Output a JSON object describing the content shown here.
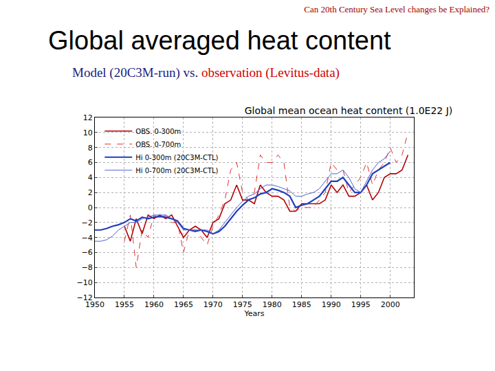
{
  "slide": {
    "header": "Can 20th Century Sea Level changes be Explained?",
    "title": "Global averaged heat content",
    "subtitle": [
      "Model (20C3M-run) vs. ",
      "observation (Levitus-data)"
    ]
  },
  "chart_data": {
    "type": "line",
    "title": "Global mean ocean heat content (1.0E22 J)",
    "x_label": "Years",
    "x": [
      1950,
      1951,
      1952,
      1953,
      1954,
      1955,
      1956,
      1957,
      1958,
      1959,
      1960,
      1961,
      1962,
      1963,
      1964,
      1965,
      1966,
      1967,
      1968,
      1969,
      1970,
      1971,
      1972,
      1973,
      1974,
      1975,
      1976,
      1977,
      1978,
      1979,
      1980,
      1981,
      1982,
      1983,
      1984,
      1985,
      1986,
      1987,
      1988,
      1989,
      1990,
      1991,
      1992,
      1993,
      1994,
      1995,
      1996,
      1997,
      1998,
      1999,
      2000,
      2001,
      2002,
      2003
    ],
    "series": [
      {
        "name": "OBS. 0-300m",
        "color": "#b00000",
        "line_style": "solid",
        "values": [
          null,
          null,
          null,
          null,
          null,
          -2.5,
          -4.5,
          -1.5,
          -3.5,
          -1,
          -1.5,
          -1,
          -1.5,
          -1,
          -2.5,
          -4,
          -3,
          -2.5,
          -3,
          -4,
          -2,
          -1.5,
          0.5,
          1,
          3,
          1,
          1,
          0.5,
          3,
          2,
          1.5,
          1.5,
          1,
          -0.5,
          -0.5,
          0.5,
          0.5,
          0.5,
          0.5,
          1,
          3,
          2,
          3,
          1.5,
          1.5,
          2,
          3,
          1,
          2,
          4,
          4.5,
          4.5,
          5,
          7
        ]
      },
      {
        "name": "OBS. 0-700m",
        "color": "#e03030",
        "line_style": "dashed",
        "values": [
          null,
          null,
          null,
          null,
          null,
          -4.5,
          -1,
          -8,
          -3,
          -4,
          -1,
          -1.5,
          -1,
          -2,
          -2,
          -6,
          -3,
          -3,
          -4,
          -5,
          -2.5,
          -1,
          1,
          5,
          6,
          2,
          1,
          2,
          7,
          6,
          6,
          7,
          6,
          0,
          -0.5,
          0,
          0,
          0,
          1,
          2,
          6,
          5,
          5,
          2,
          3,
          4,
          6,
          3,
          5,
          6,
          8,
          6,
          7,
          10
        ]
      },
      {
        "name": "Hi 0-300m (20C3M-CTL)",
        "color": "#1f3fbf",
        "line_style": "solid",
        "values": [
          -3,
          -3,
          -2.8,
          -2.5,
          -2.3,
          -2,
          -1.5,
          -1.8,
          -1.3,
          -1.5,
          -1.3,
          -1.2,
          -1.3,
          -1.5,
          -1.8,
          -2.8,
          -3,
          -3.2,
          -3,
          -3.2,
          -3.5,
          -3.2,
          -2.5,
          -1.5,
          -0.5,
          0.3,
          1,
          1.3,
          1.8,
          2,
          2.5,
          2.3,
          2,
          1.5,
          0,
          0.3,
          0.5,
          1,
          1.5,
          2.5,
          3.5,
          3.5,
          4,
          3,
          2,
          2,
          3,
          4.5,
          5,
          5.5,
          6,
          null,
          null,
          null
        ]
      },
      {
        "name": "Hi 0-700m (20C3M-CTL)",
        "color": "#5060d0",
        "line_style": "solid",
        "values": [
          -4.5,
          -4.5,
          -4.3,
          -3.8,
          -3,
          -2.5,
          -2,
          -2,
          -1.5,
          -1.3,
          -1,
          -1,
          -1,
          -1.5,
          -2,
          -3,
          -3,
          -3,
          -3,
          -3,
          -3.5,
          -3,
          -2,
          -1,
          0,
          0.8,
          1.5,
          1.8,
          2.5,
          3,
          3,
          2.8,
          2.5,
          2.2,
          1.5,
          1.5,
          1.8,
          2,
          2.5,
          3.5,
          4.5,
          4.5,
          5,
          4,
          2.5,
          2,
          3.5,
          5,
          6,
          6.5,
          7.5,
          null,
          null,
          null
        ]
      }
    ],
    "xlim": [
      1950,
      2004
    ],
    "xticks": [
      1950,
      1955,
      1960,
      1965,
      1970,
      1975,
      1980,
      1985,
      1990,
      1995,
      2000
    ],
    "ylim": [
      -12,
      12
    ],
    "yticks": [
      -12,
      -10,
      -8,
      -6,
      -4,
      -2,
      0,
      2,
      4,
      6,
      8,
      10,
      12
    ],
    "grid": true,
    "legend": "upper left"
  }
}
